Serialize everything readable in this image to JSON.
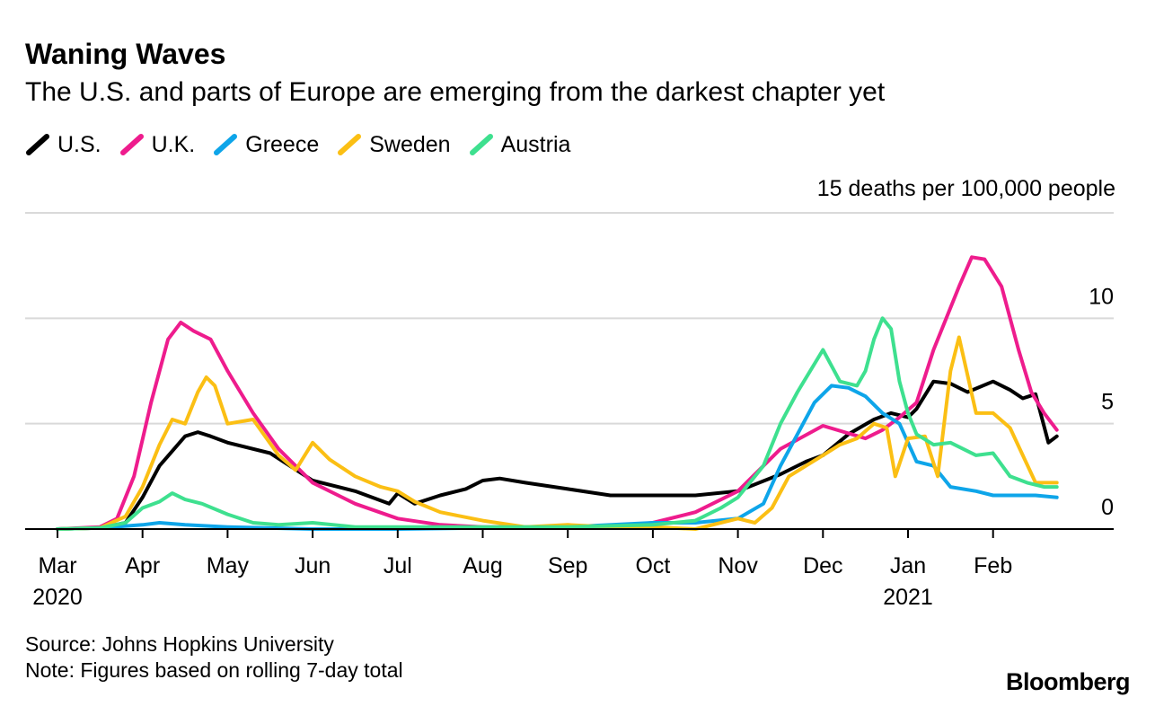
{
  "header": {
    "title": "Waning Waves",
    "subtitle": "The U.S. and parts of Europe are emerging from the darkest chapter yet"
  },
  "unit_label": "15 deaths per 100,000 people",
  "footer": {
    "source": "Source: Johns Hopkins University",
    "note": "Note: Figures based on rolling 7-day total",
    "brand": "Bloomberg"
  },
  "chart_data": {
    "type": "line",
    "title": "Waning Waves",
    "subtitle": "The U.S. and parts of Europe are emerging from the darkest chapter yet",
    "ylabel": "15 deaths per 100,000 people",
    "xlabel": "",
    "ylim": [
      0,
      15
    ],
    "xlim": [
      0,
      12
    ],
    "yticks": [
      0,
      5,
      10,
      15
    ],
    "ytick_labels": [
      "0",
      "5",
      "10",
      ""
    ],
    "grid": true,
    "legend_position": "top-left",
    "xticks": [
      {
        "pos": 0,
        "label": "Mar",
        "year": "2020"
      },
      {
        "pos": 1,
        "label": "Apr",
        "year": ""
      },
      {
        "pos": 2,
        "label": "May",
        "year": ""
      },
      {
        "pos": 3,
        "label": "Jun",
        "year": ""
      },
      {
        "pos": 4,
        "label": "Jul",
        "year": ""
      },
      {
        "pos": 5,
        "label": "Aug",
        "year": ""
      },
      {
        "pos": 6,
        "label": "Sep",
        "year": ""
      },
      {
        "pos": 7,
        "label": "Oct",
        "year": ""
      },
      {
        "pos": 8,
        "label": "Nov",
        "year": ""
      },
      {
        "pos": 9,
        "label": "Dec",
        "year": ""
      },
      {
        "pos": 10,
        "label": "Jan",
        "year": "2021"
      },
      {
        "pos": 11,
        "label": "Feb",
        "year": ""
      }
    ],
    "series": [
      {
        "name": "U.S.",
        "color": "#000000",
        "x": [
          0,
          0.5,
          0.8,
          1.0,
          1.2,
          1.5,
          1.65,
          1.8,
          2.0,
          2.5,
          3.0,
          3.5,
          3.9,
          4.0,
          4.2,
          4.5,
          4.8,
          5.0,
          5.2,
          5.5,
          6.0,
          6.5,
          7.0,
          7.5,
          8.0,
          8.5,
          8.8,
          9.0,
          9.3,
          9.6,
          9.8,
          10.0,
          10.1,
          10.3,
          10.5,
          10.7,
          11.0,
          11.2,
          11.35,
          11.5,
          11.65,
          11.75
        ],
        "y": [
          0,
          0.05,
          0.3,
          1.5,
          3.0,
          4.4,
          4.6,
          4.4,
          4.1,
          3.6,
          2.3,
          1.8,
          1.2,
          1.7,
          1.2,
          1.6,
          1.9,
          2.3,
          2.4,
          2.2,
          1.9,
          1.6,
          1.6,
          1.6,
          1.8,
          2.6,
          3.2,
          3.5,
          4.5,
          5.2,
          5.5,
          5.3,
          5.7,
          7.0,
          6.9,
          6.5,
          7.0,
          6.6,
          6.2,
          6.4,
          4.1,
          4.4
        ]
      },
      {
        "name": "U.K.",
        "color": "#ee1c8d",
        "x": [
          0,
          0.5,
          0.7,
          0.9,
          1.1,
          1.3,
          1.45,
          1.6,
          1.8,
          2.0,
          2.3,
          2.6,
          3.0,
          3.5,
          4.0,
          4.5,
          5.0,
          5.5,
          6.0,
          6.5,
          7.0,
          7.5,
          8.0,
          8.5,
          9.0,
          9.5,
          9.7,
          9.9,
          10.1,
          10.3,
          10.5,
          10.6,
          10.75,
          10.9,
          11.1,
          11.3,
          11.45,
          11.6,
          11.75
        ],
        "y": [
          0,
          0.1,
          0.5,
          2.5,
          6.0,
          9.0,
          9.8,
          9.4,
          9.0,
          7.5,
          5.5,
          3.8,
          2.2,
          1.2,
          0.5,
          0.2,
          0.1,
          0.1,
          0.1,
          0.1,
          0.3,
          0.8,
          1.8,
          3.8,
          4.9,
          4.3,
          4.7,
          5.3,
          6.0,
          8.5,
          10.5,
          11.5,
          12.9,
          12.8,
          11.5,
          8.5,
          6.5,
          5.5,
          4.7
        ]
      },
      {
        "name": "Greece",
        "color": "#0ea5e9",
        "x": [
          0,
          0.5,
          1.0,
          1.2,
          1.5,
          2.0,
          3.0,
          4.0,
          5.0,
          6.0,
          7.0,
          7.5,
          8.0,
          8.3,
          8.5,
          8.7,
          8.9,
          9.1,
          9.3,
          9.5,
          9.7,
          9.9,
          10.1,
          10.3,
          10.5,
          10.8,
          11.0,
          11.3,
          11.5,
          11.75
        ],
        "y": [
          0,
          0.05,
          0.2,
          0.3,
          0.2,
          0.1,
          0.0,
          0.0,
          0.05,
          0.1,
          0.3,
          0.3,
          0.5,
          1.2,
          3.0,
          4.5,
          6.0,
          6.8,
          6.7,
          6.3,
          5.5,
          5.0,
          3.2,
          3.0,
          2.0,
          1.8,
          1.6,
          1.6,
          1.6,
          1.5
        ]
      },
      {
        "name": "Sweden",
        "color": "#fbbf14",
        "x": [
          0,
          0.5,
          0.8,
          1.0,
          1.2,
          1.35,
          1.5,
          1.65,
          1.75,
          1.85,
          2.0,
          2.3,
          2.6,
          2.8,
          3.0,
          3.2,
          3.5,
          3.8,
          4.0,
          4.2,
          4.5,
          5.0,
          5.5,
          6.0,
          6.5,
          7.0,
          7.5,
          8.0,
          8.2,
          8.4,
          8.6,
          8.8,
          9.0,
          9.2,
          9.4,
          9.6,
          9.75,
          9.85,
          10.0,
          10.2,
          10.35,
          10.5,
          10.6,
          10.8,
          11.0,
          11.2,
          11.35,
          11.5,
          11.75
        ],
        "y": [
          0,
          0.05,
          0.6,
          2.0,
          4.0,
          5.2,
          5.0,
          6.5,
          7.2,
          6.8,
          5.0,
          5.2,
          3.5,
          2.8,
          4.1,
          3.3,
          2.5,
          2.0,
          1.8,
          1.3,
          0.8,
          0.4,
          0.1,
          0.2,
          0.1,
          0.1,
          0.0,
          0.5,
          0.3,
          1.0,
          2.5,
          3.0,
          3.5,
          4.0,
          4.3,
          5.0,
          4.8,
          2.5,
          4.3,
          4.4,
          2.5,
          7.5,
          9.1,
          5.5,
          5.5,
          4.8,
          3.5,
          2.2,
          2.2
        ]
      },
      {
        "name": "Austria",
        "color": "#3ee08f",
        "x": [
          0,
          0.5,
          0.8,
          1.0,
          1.2,
          1.35,
          1.5,
          1.7,
          2.0,
          2.3,
          2.6,
          3.0,
          3.5,
          4.0,
          5.0,
          6.0,
          7.0,
          7.5,
          7.8,
          8.0,
          8.3,
          8.5,
          8.7,
          9.0,
          9.2,
          9.4,
          9.5,
          9.6,
          9.7,
          9.8,
          9.9,
          10.0,
          10.1,
          10.3,
          10.5,
          10.8,
          11.0,
          11.2,
          11.4,
          11.6,
          11.75
        ],
        "y": [
          0,
          0.05,
          0.3,
          1.0,
          1.3,
          1.7,
          1.4,
          1.2,
          0.7,
          0.3,
          0.2,
          0.3,
          0.1,
          0.1,
          0.1,
          0.1,
          0.2,
          0.4,
          1.0,
          1.5,
          3.0,
          5.0,
          6.5,
          8.5,
          7.0,
          6.8,
          7.5,
          9.0,
          10.0,
          9.5,
          7.0,
          5.5,
          4.5,
          4.0,
          4.1,
          3.5,
          3.6,
          2.5,
          2.2,
          2.0,
          2.0
        ]
      }
    ]
  }
}
